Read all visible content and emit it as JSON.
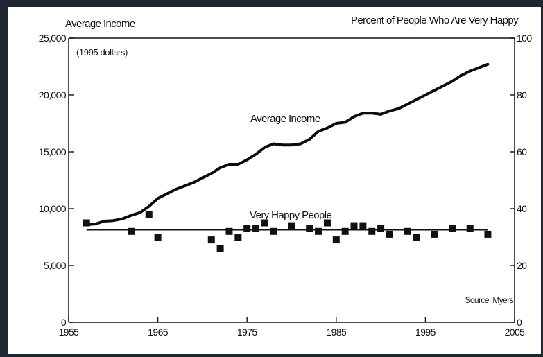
{
  "chart_data": {
    "type": "line",
    "left_axis_title": "Average Income",
    "left_axis_unit": "(1995 dollars)",
    "right_axis_title": "Percent of People Who Are Very Happy",
    "source": "Source: Myers",
    "x_ticks": [
      "1955",
      "1965",
      "1975",
      "1985",
      "1995",
      "2005"
    ],
    "y_left_ticks": [
      "0",
      "5,000",
      "10,000",
      "15,000",
      "20,000",
      "25,000"
    ],
    "y_right_ticks": [
      "0",
      "20",
      "40",
      "60",
      "80",
      "100"
    ],
    "xlim": [
      1955,
      2005
    ],
    "ylim_left": [
      0,
      25000
    ],
    "ylim_right": [
      0,
      100
    ],
    "series": [
      {
        "name": "Average Income",
        "axis": "left",
        "x": [
          1957,
          1958,
          1959,
          1960,
          1961,
          1962,
          1963,
          1964,
          1965,
          1966,
          1967,
          1968,
          1969,
          1970,
          1971,
          1972,
          1973,
          1974,
          1975,
          1976,
          1977,
          1978,
          1979,
          1980,
          1981,
          1982,
          1983,
          1984,
          1985,
          1986,
          1987,
          1988,
          1989,
          1990,
          1991,
          1992,
          1993,
          1994,
          1995,
          1996,
          1997,
          1998,
          1999,
          2000,
          2001,
          2002
        ],
        "values": [
          8600,
          8650,
          8900,
          8950,
          9100,
          9400,
          9650,
          10200,
          10900,
          11300,
          11700,
          12000,
          12300,
          12700,
          13100,
          13600,
          13900,
          13900,
          14300,
          14800,
          15400,
          15700,
          15600,
          15600,
          15700,
          16100,
          16800,
          17100,
          17500,
          17600,
          18100,
          18400,
          18400,
          18300,
          18600,
          18800,
          19200,
          19600,
          20000,
          20400,
          20800,
          21200,
          21700,
          22100,
          22400,
          22700
        ]
      },
      {
        "name": "Very Happy People",
        "axis": "right",
        "x": [
          1957,
          1962,
          1964,
          1965,
          1971,
          1972,
          1973,
          1974,
          1975,
          1976,
          1977,
          1978,
          1980,
          1982,
          1983,
          1984,
          1985,
          1986,
          1987,
          1988,
          1989,
          1990,
          1991,
          1993,
          1994,
          1996,
          1998,
          2000,
          2002
        ],
        "values": [
          35,
          32,
          38,
          30,
          29,
          26,
          32,
          30,
          33,
          33,
          35,
          32,
          34,
          33,
          32,
          35,
          29,
          32,
          34,
          34,
          32,
          33,
          31,
          32,
          30,
          31,
          33,
          33,
          31
        ]
      },
      {
        "name": "Very Happy People",
        "axis": "right",
        "type": "trend",
        "x": [
          1957,
          2002
        ],
        "values": [
          32.5,
          32.5
        ]
      }
    ],
    "grid": false
  }
}
